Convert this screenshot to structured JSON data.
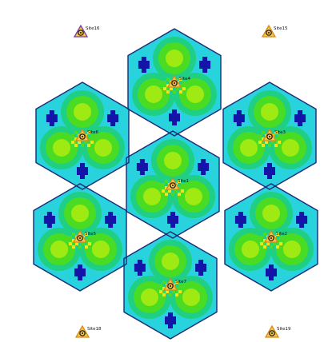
{
  "map": {
    "legend_colors": {
      "background": "#ffffff",
      "coverage_base": "#29d3dd",
      "coverage_medium": "#1fcf84",
      "coverage_high": "#49dc22",
      "coverage_peak": "#9fea12",
      "null_zone": "#1414a8",
      "site_hotspot": "#f0e51a",
      "cluster_outline": "#1b2a7a"
    }
  },
  "sites": [
    {
      "id": "site-4",
      "label": "Site4",
      "cluster": true
    },
    {
      "id": "site-6",
      "label": "Site6",
      "cluster": true
    },
    {
      "id": "site-3",
      "label": "Site3",
      "cluster": true
    },
    {
      "id": "site-1",
      "label": "Site1",
      "cluster": true
    },
    {
      "id": "site-5",
      "label": "Site5",
      "cluster": true
    },
    {
      "id": "site-2",
      "label": "Site2",
      "cluster": true
    },
    {
      "id": "site-7",
      "label": "Site7",
      "cluster": true
    },
    {
      "id": "site-16",
      "label": "Site16",
      "cluster": false,
      "style": "purple"
    },
    {
      "id": "site-15",
      "label": "Site15",
      "cluster": false
    },
    {
      "id": "site-18",
      "label": "Site18",
      "cluster": false
    },
    {
      "id": "site-19",
      "label": "Site19",
      "cluster": false
    }
  ]
}
